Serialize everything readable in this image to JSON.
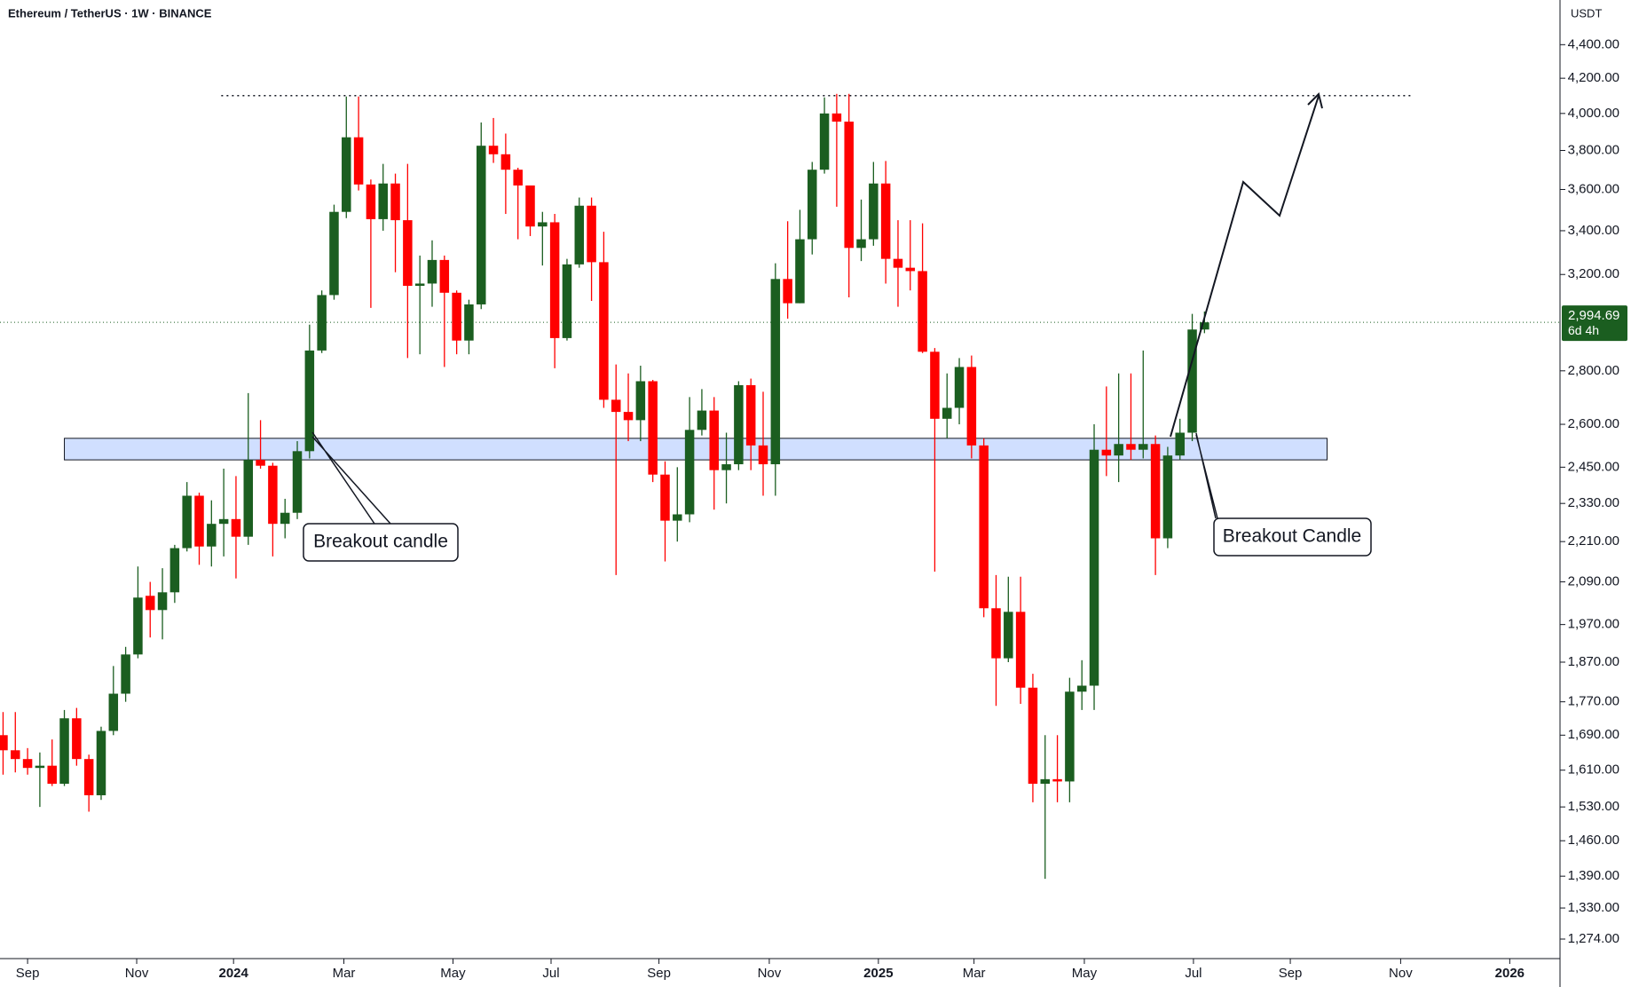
{
  "chart_data": {
    "type": "candlestick",
    "title": "Ethereum / TetherUS · 1W · BINANCE",
    "y_axis_label": "USDT",
    "log_scale": true,
    "colors": {
      "up": "#1b5e20",
      "down": "#ff0000"
    },
    "xlim": [
      -0.25,
      127
    ],
    "ylim": [
      1240,
      4681
    ],
    "xticks": [
      {
        "value": 2,
        "label": "Sep"
      },
      {
        "value": 10.9,
        "label": "Nov"
      },
      {
        "value": 18.8,
        "label": "2024"
      },
      {
        "value": 27.8,
        "label": "Mar"
      },
      {
        "value": 36.7,
        "label": "May"
      },
      {
        "value": 44.7,
        "label": "Jul"
      },
      {
        "value": 53.5,
        "label": "Sep"
      },
      {
        "value": 62.5,
        "label": "Nov"
      },
      {
        "value": 71.4,
        "label": "2025"
      },
      {
        "value": 79.2,
        "label": "Mar"
      },
      {
        "value": 88.2,
        "label": "May"
      },
      {
        "value": 97.1,
        "label": "Jul"
      },
      {
        "value": 105,
        "label": "Sep"
      },
      {
        "value": 114,
        "label": "Nov"
      },
      {
        "value": 122.9,
        "label": "2026"
      }
    ],
    "yticks": [
      {
        "value": 1274,
        "label": "1,274.00"
      },
      {
        "value": 1330,
        "label": "1,330.00"
      },
      {
        "value": 1390,
        "label": "1,390.00"
      },
      {
        "value": 1460,
        "label": "1,460.00"
      },
      {
        "value": 1530,
        "label": "1,530.00"
      },
      {
        "value": 1610,
        "label": "1,610.00"
      },
      {
        "value": 1690,
        "label": "1,690.00"
      },
      {
        "value": 1770,
        "label": "1,770.00"
      },
      {
        "value": 1870,
        "label": "1,870.00"
      },
      {
        "value": 1970,
        "label": "1,970.00"
      },
      {
        "value": 2090,
        "label": "2,090.00"
      },
      {
        "value": 2210,
        "label": "2,210.00"
      },
      {
        "value": 2330,
        "label": "2,330.00"
      },
      {
        "value": 2450,
        "label": "2,450.00"
      },
      {
        "value": 2600,
        "label": "2,600.00"
      },
      {
        "value": 2800,
        "label": "2,800.00"
      },
      {
        "value": 3200,
        "label": "3,200.00"
      },
      {
        "value": 3400,
        "label": "3,400.00"
      },
      {
        "value": 3600,
        "label": "3,600.00"
      },
      {
        "value": 3800,
        "label": "3,800.00"
      },
      {
        "value": 4000,
        "label": "4,000.00"
      },
      {
        "value": 4200,
        "label": "4,200.00"
      },
      {
        "value": 4400,
        "label": "4,400.00"
      }
    ],
    "open": [
      1690,
      1655,
      1635,
      1615,
      1620,
      1580,
      1730,
      1635,
      1555,
      1700,
      1790,
      1890,
      2050,
      2010,
      2060,
      2190,
      2355,
      2195,
      2265,
      2280,
      2225,
      2475,
      2455,
      2265,
      2300,
      2505,
      2880,
      3110,
      3490,
      3870,
      3625,
      3455,
      3630,
      3450,
      3150,
      3160,
      3265,
      3120,
      2920,
      3070,
      3825,
      3780,
      3700,
      3620,
      3420,
      3440,
      2930,
      3245,
      3520,
      3255,
      2690,
      2645,
      2615,
      2760,
      2425,
      2275,
      2295,
      2580,
      2650,
      2440,
      2460,
      2745,
      2525,
      2460,
      3180,
      3075,
      3360,
      3700,
      4000,
      3955,
      3320,
      3360,
      3630,
      3270,
      3230,
      3215,
      2875,
      2620,
      2660,
      2815,
      2525,
      2015,
      1880,
      2005,
      1805,
      1580,
      1590,
      1585,
      1795,
      1810,
      2510,
      2490,
      2530,
      2510,
      2530,
      2220,
      2490,
      2570,
      2965
    ],
    "high": [
      1745,
      1745,
      1660,
      1650,
      1680,
      1750,
      1755,
      1645,
      1710,
      1860,
      1910,
      2135,
      2090,
      2130,
      2200,
      2400,
      2365,
      2340,
      2445,
      2420,
      2715,
      2615,
      2465,
      2345,
      2540,
      2985,
      3130,
      3525,
      4095,
      4095,
      3650,
      3730,
      3680,
      3730,
      3285,
      3355,
      3285,
      3130,
      3090,
      3950,
      3975,
      3890,
      3710,
      3620,
      3490,
      3480,
      3270,
      3560,
      3560,
      3395,
      2825,
      2790,
      2820,
      2765,
      2470,
      2450,
      2700,
      2730,
      2700,
      2570,
      2760,
      2770,
      2720,
      3250,
      3445,
      3500,
      3740,
      4090,
      4110,
      4110,
      3550,
      3740,
      3745,
      3450,
      3450,
      3435,
      2890,
      2790,
      2850,
      2860,
      2550,
      2110,
      2105,
      2105,
      1840,
      1690,
      1690,
      1830,
      1875,
      2600,
      2740,
      2790,
      2790,
      2880,
      2560,
      2520,
      2620,
      3030,
      3040
    ],
    "low": [
      1600,
      1605,
      1600,
      1530,
      1575,
      1575,
      1620,
      1520,
      1545,
      1690,
      1770,
      1880,
      1935,
      1930,
      2030,
      2180,
      2140,
      2135,
      2165,
      2100,
      2200,
      2445,
      2165,
      2220,
      2280,
      2480,
      2870,
      3090,
      3460,
      3595,
      3055,
      3400,
      3210,
      2850,
      2865,
      3060,
      2815,
      2865,
      2865,
      3050,
      3735,
      3480,
      3360,
      3375,
      3240,
      2810,
      2920,
      3230,
      3085,
      2660,
      2110,
      2540,
      2540,
      2400,
      2150,
      2210,
      2270,
      2560,
      2310,
      2330,
      2440,
      2440,
      2355,
      2355,
      3010,
      3075,
      3290,
      3680,
      3515,
      3100,
      3260,
      3330,
      3160,
      3060,
      3130,
      2870,
      2120,
      2550,
      2600,
      2480,
      1990,
      1760,
      1870,
      1765,
      1540,
      1385,
      1540,
      1540,
      1750,
      1750,
      2420,
      2400,
      2475,
      2480,
      2110,
      2190,
      2475,
      2540,
      2950
    ],
    "close": [
      1655,
      1635,
      1615,
      1620,
      1580,
      1730,
      1635,
      1555,
      1700,
      1790,
      1890,
      2045,
      2010,
      2060,
      2190,
      2355,
      2195,
      2265,
      2280,
      2225,
      2475,
      2455,
      2265,
      2300,
      2505,
      2880,
      3110,
      3490,
      3870,
      3625,
      3455,
      3630,
      3450,
      3150,
      3160,
      3265,
      3120,
      2920,
      3070,
      3825,
      3780,
      3700,
      3620,
      3420,
      3440,
      2930,
      3245,
      3520,
      3255,
      2690,
      2645,
      2615,
      2760,
      2425,
      2275,
      2295,
      2580,
      2650,
      2440,
      2460,
      2745,
      2525,
      2460,
      3180,
      3075,
      3360,
      3700,
      4000,
      3955,
      3320,
      3360,
      3630,
      3270,
      3230,
      3215,
      2875,
      2620,
      2660,
      2815,
      2525,
      2015,
      1880,
      2005,
      1805,
      1580,
      1590,
      1585,
      1795,
      1810,
      2510,
      2490,
      2530,
      2510,
      2530,
      2220,
      2490,
      2570,
      2965,
      2994.69
    ],
    "last_price": {
      "value": 2994.69,
      "label": "2,994.69"
    },
    "countdown": "6d 4h",
    "zone": {
      "from": 5,
      "to": 108,
      "low": 2475,
      "high": 2550
    },
    "resistance": {
      "value": 4100,
      "from": 17.8,
      "to": 114.9
    },
    "annotations": [
      "Breakout candle",
      "Breakout Candle"
    ]
  }
}
